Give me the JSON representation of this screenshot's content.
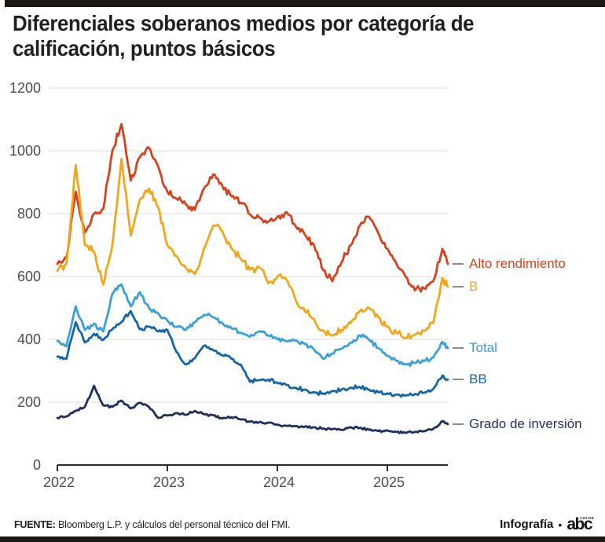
{
  "header": {
    "title_lines": [
      "Diferenciales soberanos medios por categoría de",
      "calificación, puntos básicos"
    ]
  },
  "chart_data": {
    "type": "line",
    "title": "Diferenciales soberanos medios por categoría de calificación, puntos básicos",
    "xlabel": "",
    "ylabel": "puntos básicos",
    "ylim": [
      0,
      1200
    ],
    "xlim": [
      2022,
      2025.55
    ],
    "yticks": [
      0,
      200,
      400,
      600,
      800,
      1000,
      1200
    ],
    "xticks": [
      2022,
      2023,
      2024,
      2025
    ],
    "grid": true,
    "legend_position": "right",
    "x_years": [
      2022.0,
      2022.083,
      2022.167,
      2022.25,
      2022.333,
      2022.417,
      2022.5,
      2022.583,
      2022.667,
      2022.75,
      2022.833,
      2022.917,
      2023.0,
      2023.083,
      2023.167,
      2023.25,
      2023.333,
      2023.417,
      2023.5,
      2023.583,
      2023.667,
      2023.75,
      2023.833,
      2023.917,
      2024.0,
      2024.083,
      2024.167,
      2024.25,
      2024.333,
      2024.417,
      2024.5,
      2024.583,
      2024.667,
      2024.75,
      2024.833,
      2024.917,
      2025.0,
      2025.083,
      2025.167,
      2025.25,
      2025.333,
      2025.417,
      2025.5,
      2025.55
    ],
    "series": [
      {
        "name": "Alto rendimiento",
        "color": "#d8411e",
        "values": [
          640,
          660,
          870,
          740,
          800,
          815,
          1000,
          1085,
          905,
          980,
          1010,
          950,
          870,
          848,
          830,
          812,
          880,
          925,
          888,
          855,
          835,
          798,
          788,
          775,
          790,
          805,
          760,
          733,
          700,
          620,
          585,
          645,
          700,
          762,
          790,
          738,
          688,
          640,
          598,
          556,
          562,
          585,
          688,
          640
        ]
      },
      {
        "name": "B",
        "color": "#f2a71b",
        "values": [
          618,
          640,
          955,
          700,
          680,
          575,
          700,
          975,
          730,
          845,
          880,
          820,
          700,
          665,
          628,
          608,
          690,
          762,
          745,
          690,
          658,
          622,
          630,
          578,
          600,
          590,
          525,
          490,
          465,
          428,
          412,
          430,
          452,
          490,
          500,
          470,
          442,
          420,
          405,
          415,
          428,
          452,
          595,
          568
        ]
      },
      {
        "name": "Total",
        "color": "#3b9fd8",
        "values": [
          395,
          378,
          505,
          430,
          450,
          425,
          545,
          575,
          505,
          550,
          500,
          482,
          460,
          440,
          430,
          455,
          478,
          470,
          452,
          435,
          420,
          408,
          425,
          412,
          400,
          394,
          396,
          385,
          368,
          338,
          355,
          370,
          390,
          412,
          400,
          372,
          348,
          332,
          320,
          325,
          331,
          342,
          392,
          372
        ]
      },
      {
        "name": "BB",
        "color": "#1565a8",
        "values": [
          345,
          338,
          455,
          390,
          418,
          398,
          432,
          455,
          490,
          432,
          440,
          425,
          430,
          360,
          320,
          340,
          380,
          365,
          350,
          338,
          320,
          265,
          270,
          272,
          262,
          255,
          246,
          240,
          232,
          228,
          235,
          240,
          246,
          248,
          240,
          232,
          228,
          224,
          222,
          226,
          230,
          242,
          285,
          272
        ]
      },
      {
        "name": "Grado de inversión",
        "color": "#1d2f5f",
        "values": [
          150,
          155,
          172,
          185,
          252,
          190,
          185,
          205,
          180,
          198,
          185,
          150,
          158,
          165,
          160,
          172,
          162,
          158,
          148,
          152,
          145,
          138,
          136,
          135,
          128,
          125,
          124,
          122,
          120,
          116,
          114,
          112,
          120,
          118,
          112,
          108,
          110,
          105,
          102,
          105,
          108,
          115,
          140,
          130
        ]
      }
    ]
  },
  "footer": {
    "source_label": "FUENTE:",
    "source_text": " Bloomberg L.P. y cálculos del personal técnico del FMI.",
    "credit_label": "Infografía",
    "separator": "•",
    "logo_text": "abc",
    "logo_sub": "COLOR"
  }
}
